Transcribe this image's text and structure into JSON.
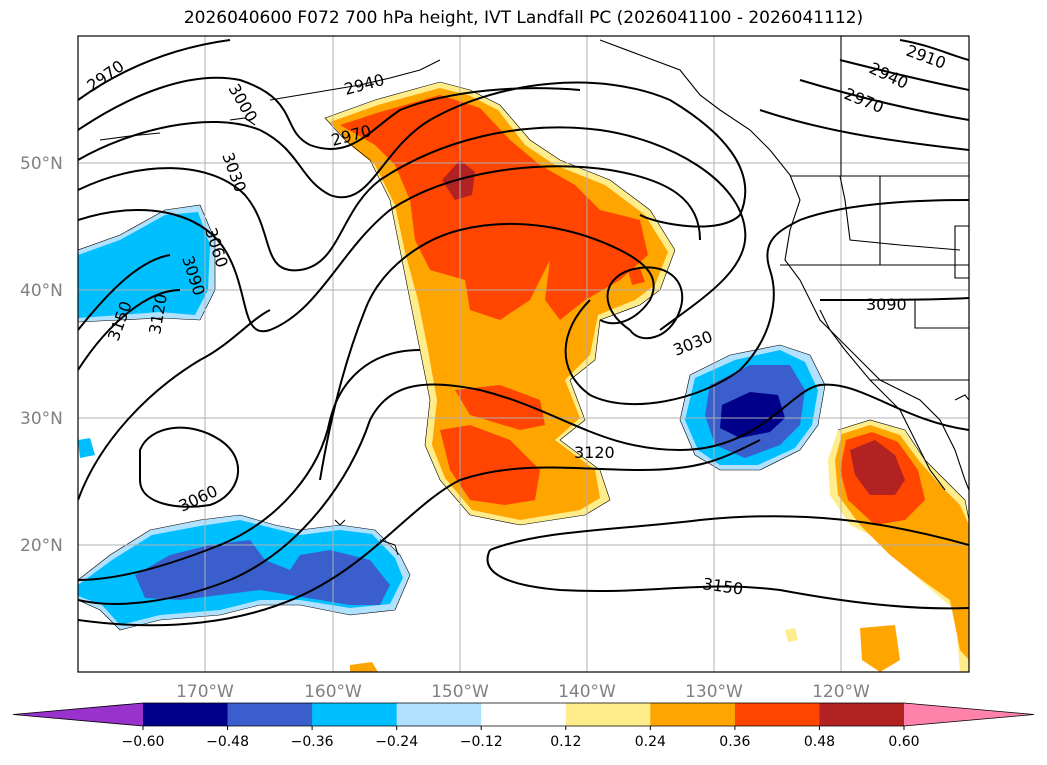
{
  "title": "2026040600 F072 700 hPa height, IVT Landfall PC (2026041100 - 2026041112)",
  "map": {
    "lon_labels": [
      "170°W",
      "160°W",
      "150°W",
      "140°W",
      "130°W",
      "120°W"
    ],
    "lat_labels": [
      "50°N",
      "40°N",
      "30°N",
      "20°N"
    ],
    "contour_labels": [
      "2970",
      "3000",
      "2940",
      "2910",
      "2940",
      "2970",
      "2970",
      "3030",
      "3060",
      "3090",
      "3120",
      "3150",
      "3090",
      "3030",
      "3120",
      "3060",
      "3150"
    ]
  },
  "colorbar": {
    "ticks": [
      "−0.60",
      "−0.48",
      "−0.36",
      "−0.24",
      "−0.12",
      "0.12",
      "0.24",
      "0.36",
      "0.48",
      "0.60"
    ],
    "colors": [
      "#9932cc",
      "#00008b",
      "#3a5fcd",
      "#00bfff",
      "#b0e2ff",
      "#ffffff",
      "#ffec8b",
      "#ffa500",
      "#ff4500",
      "#b22222",
      "#ff82ab"
    ]
  }
}
